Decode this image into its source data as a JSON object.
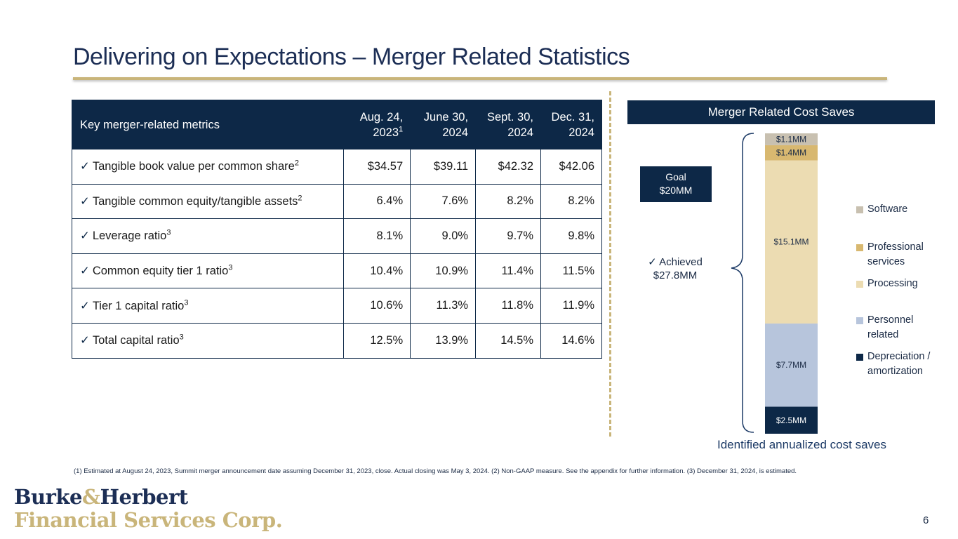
{
  "title": "Delivering on Expectations – Merger Related Statistics",
  "table": {
    "header": {
      "label": "Key merger-related metrics",
      "columns": [
        {
          "line1": "Aug. 24,",
          "line2": "2023",
          "sup": "1"
        },
        {
          "line1": "June 30,",
          "line2": "2024",
          "sup": ""
        },
        {
          "line1": "Sept. 30,",
          "line2": "2024",
          "sup": ""
        },
        {
          "line1": "Dec. 31,",
          "line2": "2024",
          "sup": ""
        }
      ]
    },
    "rows": [
      {
        "label": "Tangible book value per common share",
        "sup": "2",
        "values": [
          "$34.57",
          "$39.11",
          "$42.32",
          "$42.06"
        ]
      },
      {
        "label": "Tangible common equity/tangible assets",
        "sup": "2",
        "values": [
          "6.4%",
          "7.6%",
          "8.2%",
          "8.2%"
        ]
      },
      {
        "label": "Leverage ratio",
        "sup": "3",
        "values": [
          "8.1%",
          "9.0%",
          "9.7%",
          "9.8%"
        ]
      },
      {
        "label": "Common equity tier 1 ratio",
        "sup": "3",
        "values": [
          "10.4%",
          "10.9%",
          "11.4%",
          "11.5%"
        ]
      },
      {
        "label": "Tier 1 capital ratio",
        "sup": "3",
        "values": [
          "10.6%",
          "11.3%",
          "11.8%",
          "11.9%"
        ]
      },
      {
        "label": "Total capital ratio",
        "sup": "3",
        "values": [
          "12.5%",
          "13.9%",
          "14.5%",
          "14.6%"
        ]
      }
    ],
    "check_symbol": "✓"
  },
  "chart": {
    "header": "Merger Related Cost Saves",
    "goal_line1": "Goal",
    "goal_line2": "$20MM",
    "achieved_line1": "Achieved",
    "achieved_line2": "$27.8MM",
    "caption": "Identified annualized cost saves"
  },
  "chart_data": {
    "type": "bar",
    "stacked": true,
    "title": "Merger Related Cost Saves",
    "xlabel": "Identified annualized cost saves",
    "ylabel": "",
    "units": "$MM",
    "total": 27.8,
    "series": [
      {
        "name": "Depreciation / amortization",
        "value": 2.5,
        "label": "$2.5MM",
        "color": "#0d2847",
        "label_color": "#ffffff"
      },
      {
        "name": "Personnel related",
        "value": 7.7,
        "label": "$7.7MM",
        "color": "#b7c5dc",
        "label_color": "#1a2a44"
      },
      {
        "name": "Processing",
        "value": 15.1,
        "label": "$15.1MM",
        "color": "#ecdcb2",
        "label_color": "#1a2a44"
      },
      {
        "name": "Professional services",
        "value": 1.4,
        "label": "$1.4MM",
        "color": "#d8b870",
        "label_color": "#1a2a44"
      },
      {
        "name": "Software",
        "value": 1.1,
        "label": "$1.1MM",
        "color": "#c8c0b0",
        "label_color": "#1a2a44"
      }
    ],
    "legend": [
      {
        "line1": "Software",
        "line2": "",
        "color": "#c8c0b0"
      },
      {
        "line1": "Professional",
        "line2": "services",
        "color": "#d8b870"
      },
      {
        "line1": "Processing",
        "line2": "",
        "color": "#ecdcb2"
      },
      {
        "line1": "Personnel",
        "line2": "related",
        "color": "#b7c5dc"
      },
      {
        "line1": "Depreciation /",
        "line2": "amortization",
        "color": "#0d2847"
      }
    ]
  },
  "footnote": "(1) Estimated at August 24, 2023, Summit merger announcement date  assuming December 31, 2023, close.  Actual closing was May 3, 2024. (2) Non-GAAP measure. See the appendix for further information. (3) December 31, 2024, is estimated.",
  "logo": {
    "part1": "Burke",
    "amp": "&",
    "part2": "Herbert",
    "line2": "Financial Services Corp."
  },
  "page_number": "6"
}
